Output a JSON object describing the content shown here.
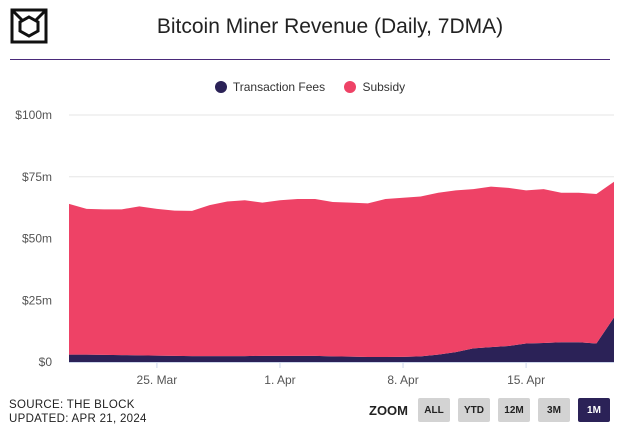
{
  "title": "Bitcoin Miner Revenue (Daily, 7DMA)",
  "source": "SOURCE: THE BLOCK",
  "updated": "UPDATED: APR 21, 2024",
  "zoom": {
    "label": "ZOOM",
    "buttons": [
      "ALL",
      "YTD",
      "12M",
      "3M",
      "1M"
    ],
    "selected": "1M"
  },
  "chart_data": {
    "type": "area",
    "stacked": true,
    "title": "Bitcoin Miner Revenue (Daily, 7DMA)",
    "x_start": "2024-03-20",
    "x_end": "2024-04-20",
    "x_ticks": [
      {
        "date": "2024-03-25",
        "label": "25. Mar"
      },
      {
        "date": "2024-04-01",
        "label": "1. Apr"
      },
      {
        "date": "2024-04-08",
        "label": "8. Apr"
      },
      {
        "date": "2024-04-15",
        "label": "15. Apr"
      }
    ],
    "y_ticks": [
      0,
      25,
      50,
      75,
      100
    ],
    "y_tick_labels": [
      "$0",
      "$25m",
      "$50m",
      "$75m",
      "$100m"
    ],
    "ylim": [
      0,
      100
    ],
    "grid": true,
    "legend": "top",
    "series": [
      {
        "name": "Transaction Fees",
        "color": "#2b2257",
        "values": [
          3,
          3,
          2.9,
          2.8,
          2.7,
          2.6,
          2.5,
          2.4,
          2.4,
          2.4,
          2.4,
          2.5,
          2.5,
          2.5,
          2.5,
          2.3,
          2.2,
          2,
          2,
          2.1,
          2.3,
          3,
          4,
          5.5,
          6,
          6.5,
          7.5,
          7.7,
          8,
          8,
          7.5,
          18
        ]
      },
      {
        "name": "Subsidy",
        "color": "#ee4266",
        "values": [
          61,
          59,
          58.9,
          59,
          60.3,
          59.4,
          58.8,
          58.8,
          61.1,
          62.6,
          63.1,
          62,
          63,
          63.5,
          63.5,
          62.5,
          62.3,
          62.2,
          64,
          64.4,
          64.7,
          65.5,
          65.5,
          64.5,
          65,
          64,
          62,
          62.3,
          60.5,
          60.5,
          60.5,
          55
        ]
      }
    ]
  }
}
